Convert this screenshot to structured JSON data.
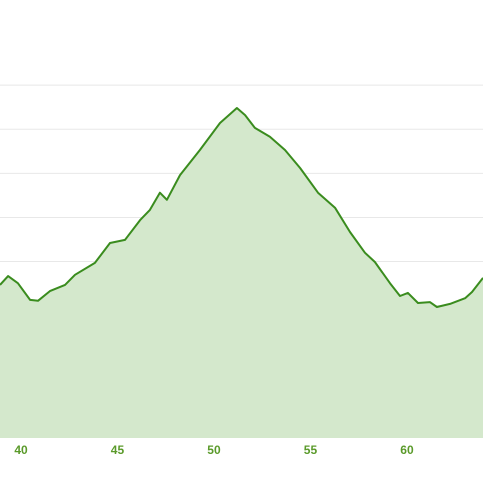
{
  "chart_data": {
    "type": "area",
    "x": [
      38.91,
      39.33,
      39.84,
      40.47,
      40.88,
      41.5,
      42.28,
      42.8,
      43.83,
      44.61,
      45.39,
      46.17,
      46.68,
      47.2,
      47.56,
      48.24,
      49.27,
      50.31,
      51.19,
      51.61,
      52.12,
      52.9,
      53.68,
      54.46,
      55.39,
      56.27,
      57.05,
      57.82,
      58.34,
      59.12,
      59.64,
      60.05,
      60.57,
      61.19,
      61.55,
      62.23,
      63.01,
      63.37,
      63.94
    ],
    "values": [
      3.47,
      3.67,
      3.51,
      3.13,
      3.11,
      3.33,
      3.47,
      3.7,
      3.97,
      4.42,
      4.49,
      4.94,
      5.17,
      5.56,
      5.4,
      5.96,
      6.53,
      7.14,
      7.48,
      7.32,
      7.03,
      6.83,
      6.53,
      6.12,
      5.56,
      5.22,
      4.67,
      4.2,
      3.99,
      3.51,
      3.22,
      3.29,
      3.06,
      3.08,
      2.97,
      3.04,
      3.17,
      3.31,
      3.63
    ],
    "color": "#3a8c1e",
    "fill": "#d4e8cc",
    "xlim": [
      38.912,
      63.94
    ],
    "xticks": [
      40,
      45,
      50,
      55,
      60
    ],
    "ylim": [
      0,
      9
    ],
    "yticks": [
      1,
      2,
      3,
      4,
      5,
      6,
      7,
      8
    ],
    "grid": true
  }
}
